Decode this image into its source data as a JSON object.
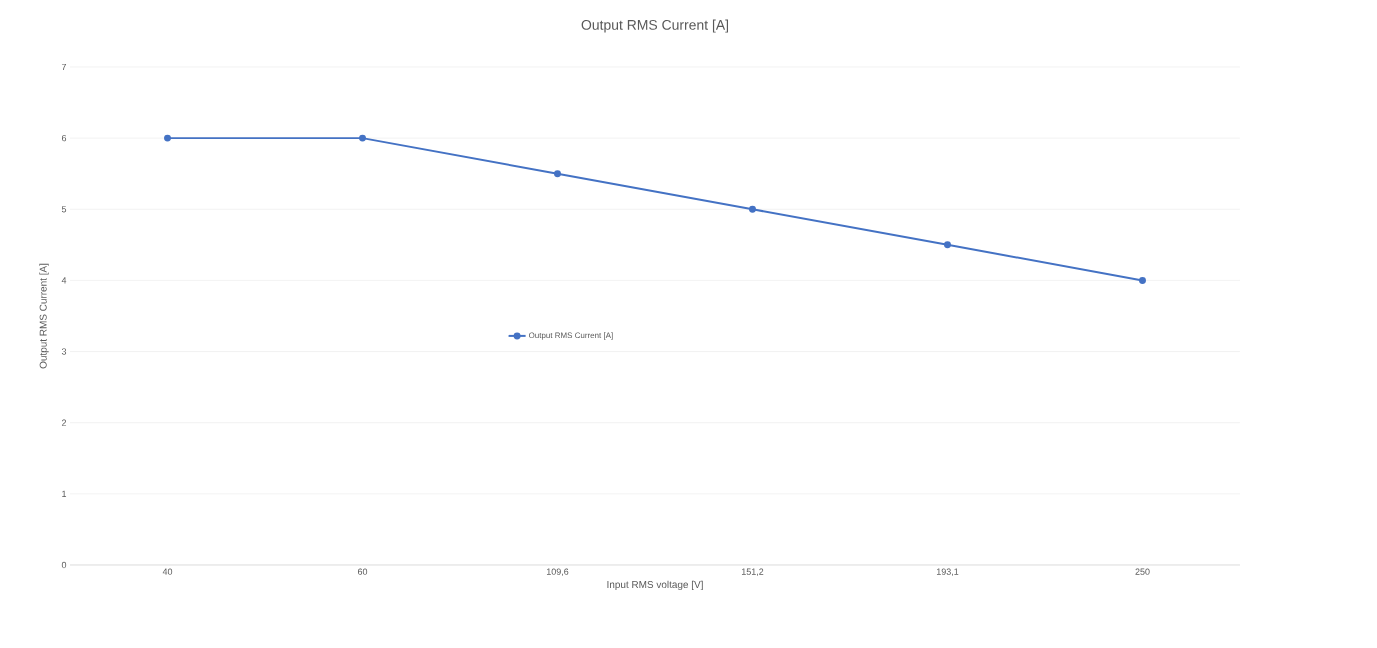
{
  "chart_data": {
    "type": "line",
    "title": "Output RMS Current [A]",
    "xlabel": "Input RMS voltage [V]",
    "ylabel": "Output RMS Current [A]",
    "categories": [
      "40",
      "60",
      "109,6",
      "151,2",
      "193,1",
      "250"
    ],
    "series": [
      {
        "name": "Output RMS Current [A]",
        "color": "#4472c4",
        "values": [
          6,
          6,
          5.5,
          5,
          4.5,
          4
        ]
      }
    ],
    "ylim": [
      0,
      7
    ],
    "yticks": [
      0,
      1,
      2,
      3,
      4,
      5,
      6,
      7
    ],
    "grid": "y",
    "legend": "center",
    "marker": "circle"
  }
}
